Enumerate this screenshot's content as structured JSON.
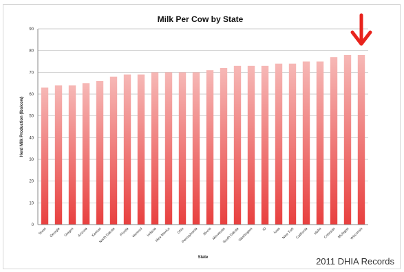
{
  "chart_data": {
    "type": "bar",
    "title": "Milk Per Cow by State",
    "xlabel": "State",
    "ylabel": "Herd Milk Production (lbs/cow)",
    "ylim": [
      0,
      90
    ],
    "yticks": [
      0,
      10,
      20,
      30,
      40,
      50,
      60,
      70,
      80,
      90
    ],
    "grid": true,
    "categories": [
      "Texas",
      "Georgia",
      "Oregon",
      "Arizona",
      "Kansas",
      "North Dakota",
      "Florida",
      "Vermont",
      "Indiana",
      "New Mexico",
      "Ohio",
      "Pennsylvania",
      "Illinois",
      "Minnesota",
      "South Dakota",
      "Washington",
      "ID",
      "Iowa",
      "New York",
      "California",
      "Idaho",
      "Colorado",
      "Michigan",
      "Wisconsin"
    ],
    "values": [
      63,
      64,
      64,
      65,
      66,
      68,
      69,
      69,
      70,
      70,
      70,
      70,
      71,
      72,
      73,
      73,
      73,
      74,
      74,
      75,
      75,
      77,
      78,
      78
    ],
    "bar_color_top": "#f6b8b6",
    "bar_color_bottom": "#e8403f",
    "highlight_index": 23,
    "highlight_marker": "down-arrow",
    "arrow_color": "#e8231c"
  },
  "source_note": "2011 DHIA Records"
}
